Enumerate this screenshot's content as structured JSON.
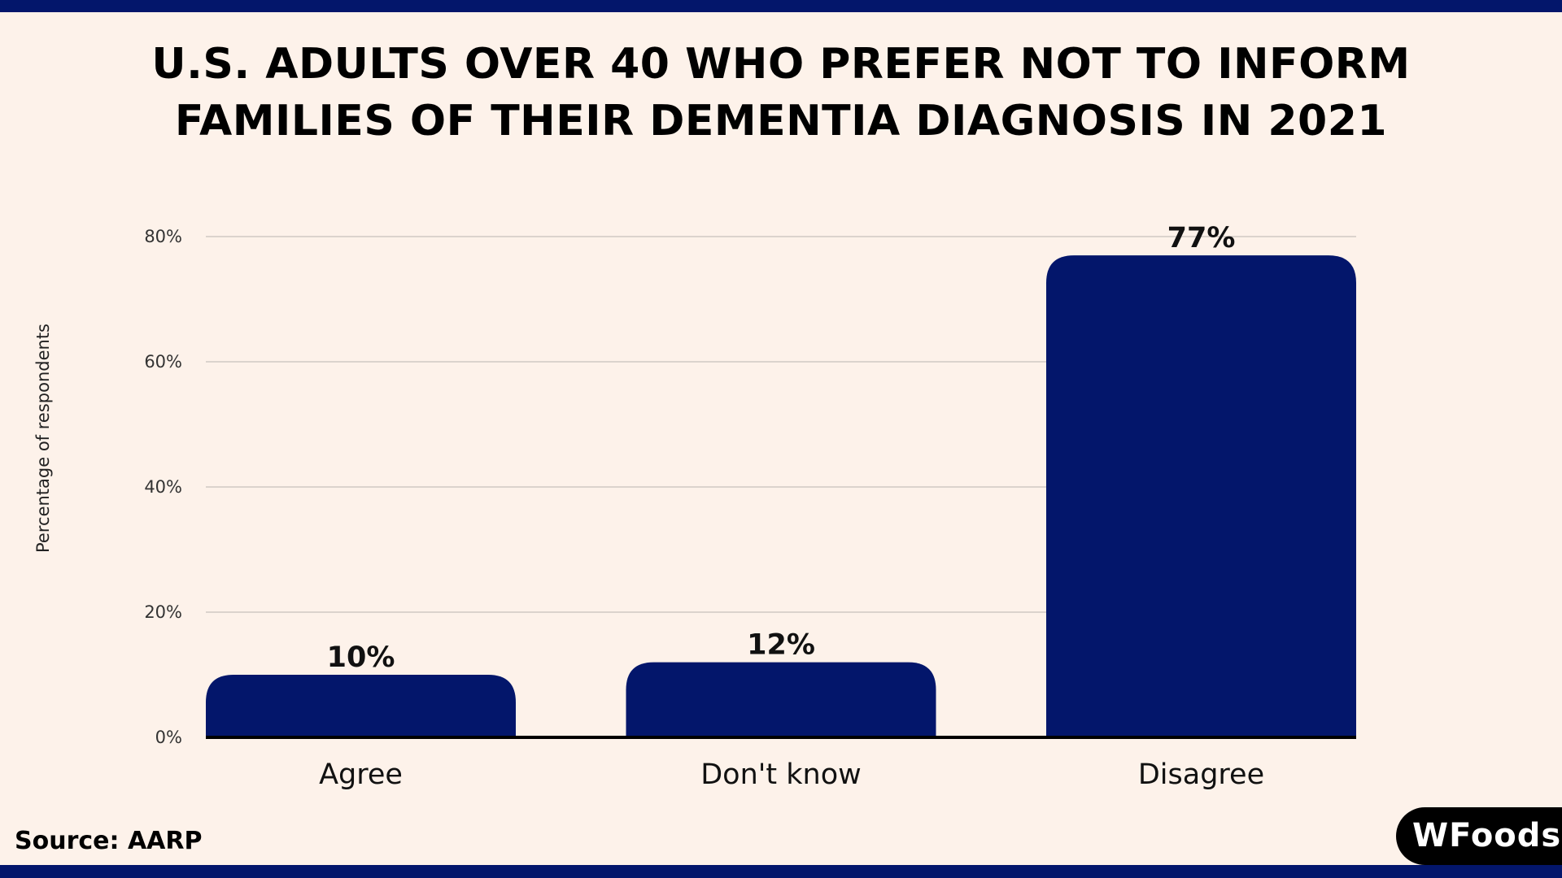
{
  "chart_data": {
    "type": "bar",
    "title": "U.S. ADULTS OVER 40 WHO PREFER NOT TO INFORM FAMILIES OF THEIR DEMENTIA DIAGNOSIS IN 2021",
    "title_lines": [
      "U.S. ADULTS OVER 40 WHO PREFER NOT TO INFORM",
      "FAMILIES OF THEIR DEMENTIA DIAGNOSIS IN 2021"
    ],
    "categories": [
      "Agree",
      "Don't know",
      "Disagree"
    ],
    "values": [
      10,
      12,
      77
    ],
    "data_labels": [
      "10%",
      "12%",
      "77%"
    ],
    "xlabel": "",
    "ylabel": "Percentage of respondents",
    "ylim": [
      0,
      80
    ],
    "yticks": [
      0,
      20,
      40,
      60,
      80
    ],
    "ytick_labels": [
      "0%",
      "20%",
      "40%",
      "60%",
      "80%"
    ],
    "grid": true,
    "bar_color": "#03166b"
  },
  "source": "Source: AARP",
  "logo": "WFoods"
}
